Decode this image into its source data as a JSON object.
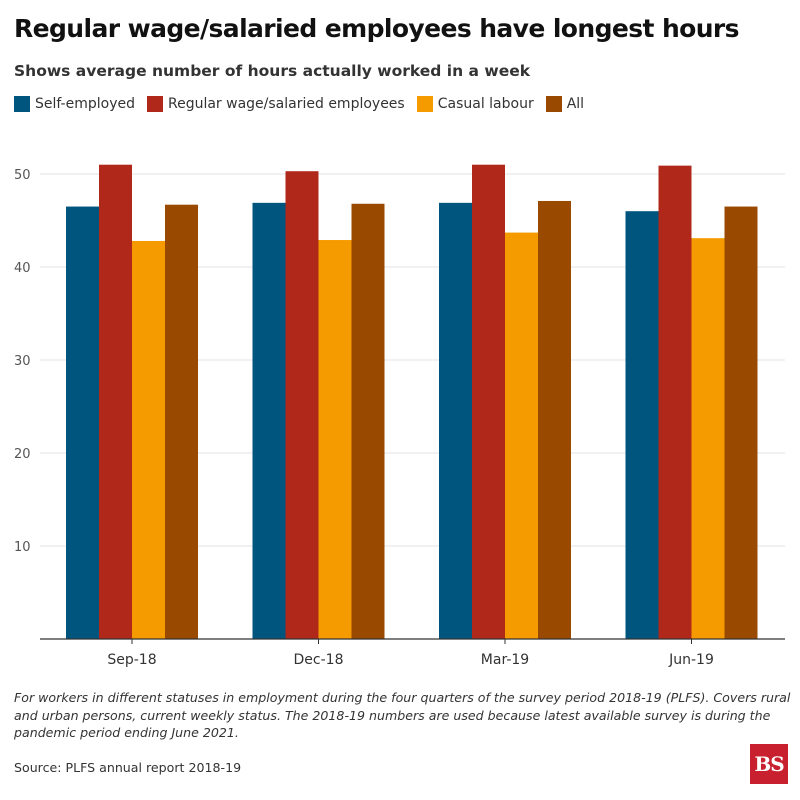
{
  "chart_data": {
    "type": "bar",
    "title": "Regular wage/salaried employees have longest hours",
    "subtitle": "Shows average number of hours actually worked in a week",
    "categories": [
      "Sep-18",
      "Dec-18",
      "Mar-19",
      "Jun-19"
    ],
    "series": [
      {
        "name": "Self-employed",
        "color": "#00557f",
        "values": [
          46.5,
          46.9,
          46.9,
          46.0
        ]
      },
      {
        "name": "Regular wage/salaried employees",
        "color": "#b0281a",
        "values": [
          51.0,
          50.3,
          51.0,
          50.9
        ]
      },
      {
        "name": "Casual labour",
        "color": "#f59b00",
        "values": [
          42.8,
          42.9,
          43.7,
          43.1
        ]
      },
      {
        "name": "All",
        "color": "#994a00",
        "values": [
          46.7,
          46.8,
          47.1,
          46.5
        ]
      }
    ],
    "y_ticks": [
      10,
      20,
      30,
      40,
      50
    ],
    "ylim": [
      0,
      55
    ],
    "grid": true,
    "legend_position": "top-left"
  },
  "footnote": "For workers in different statuses in employment during the four quarters of the survey period 2018-19 (PLFS). Covers rural and urban persons, current weekly status. The 2018-19 numbers are used because latest available survey is during the pandemic period ending June 2021.",
  "source": "Source: PLFS annual report 2018-19",
  "logo_text": "BS"
}
